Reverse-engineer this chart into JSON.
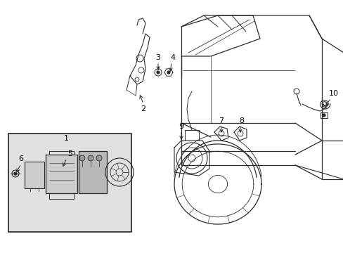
{
  "background_color": "#ffffff",
  "line_color": "#2a2a2a",
  "label_color": "#000000",
  "box_bg": "#e0e0e0",
  "box_border": "#222222",
  "fig_width": 4.89,
  "fig_height": 3.6,
  "dpi": 100
}
